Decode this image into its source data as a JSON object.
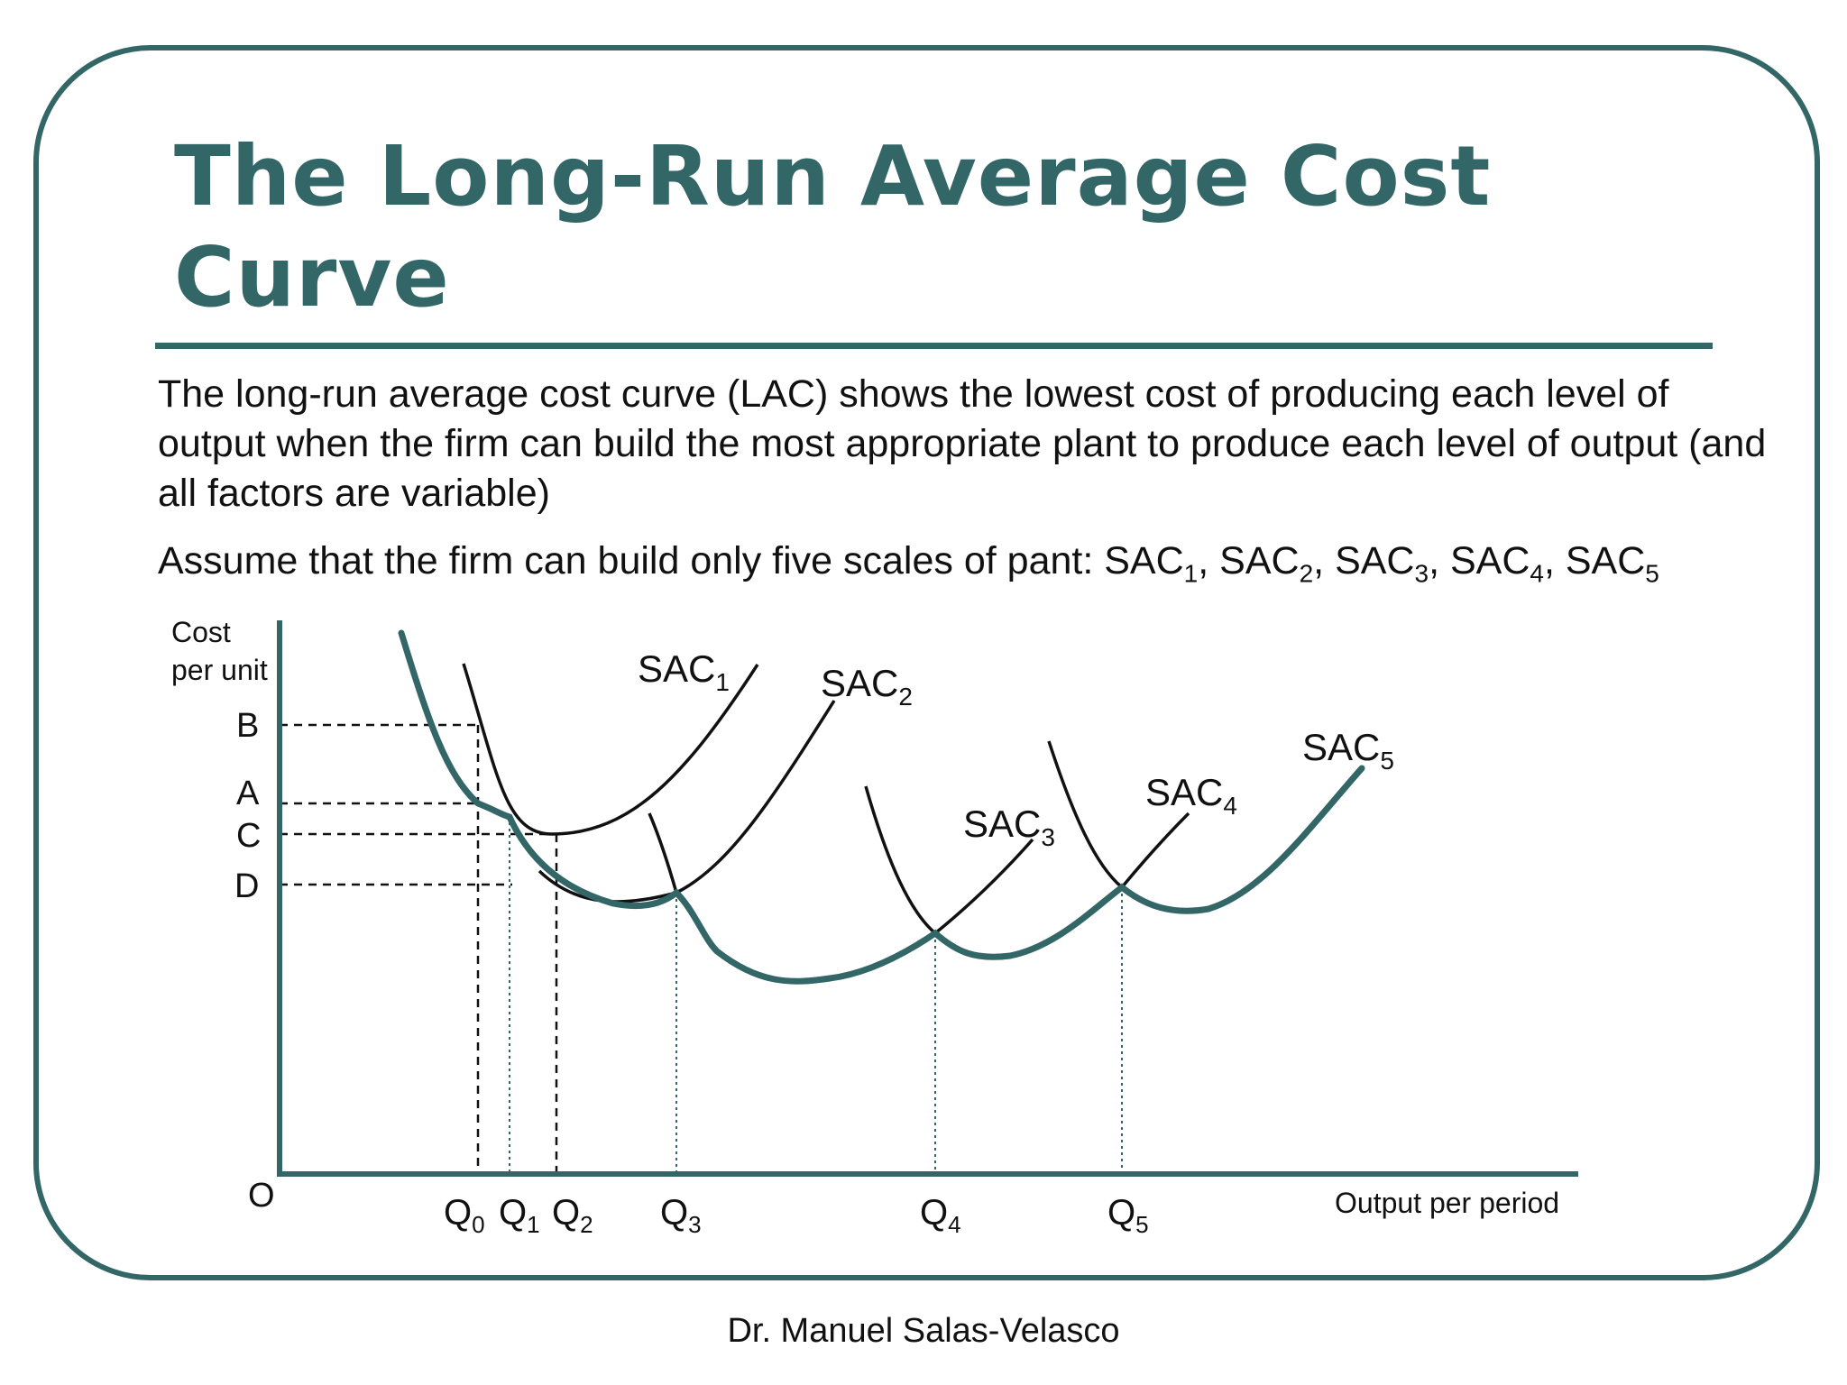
{
  "slide": {
    "title": "The Long-Run Average Cost Curve",
    "paragraph1": "The long-run average cost curve (LAC) shows the lowest cost of producing each level of output when the firm can build the most appropriate plant to produce each level of output (and all factors are variable)",
    "paragraph2_prefix": "Assume that the firm can build only five scales of pant: ",
    "paragraph2_items": [
      "SAC",
      "SAC",
      "SAC",
      "SAC",
      "SAC"
    ],
    "paragraph2_subs": [
      "1",
      "2",
      "3",
      "4",
      "5"
    ],
    "footer": "Dr. Manuel Salas-Velasco"
  },
  "diagram": {
    "y_axis_label": [
      "Cost",
      "per unit"
    ],
    "x_axis_label": "Output per period",
    "origin_label": "O",
    "y_ticks": [
      "B",
      "A",
      "C",
      "D"
    ],
    "x_ticks": [
      {
        "base": "Q",
        "sub": "0"
      },
      {
        "base": "Q",
        "sub": "1"
      },
      {
        "base": "Q",
        "sub": "2"
      },
      {
        "base": "Q",
        "sub": "3"
      },
      {
        "base": "Q",
        "sub": "4"
      },
      {
        "base": "Q",
        "sub": "5"
      }
    ],
    "curve_labels": [
      {
        "base": "SAC",
        "sub": "1"
      },
      {
        "base": "SAC",
        "sub": "2"
      },
      {
        "base": "SAC",
        "sub": "3"
      },
      {
        "base": "SAC",
        "sub": "4"
      },
      {
        "base": "SAC",
        "sub": "5"
      }
    ],
    "colors": {
      "lac_curve": "#336666",
      "sac_curves": "#111111",
      "axes": "#336666"
    }
  }
}
